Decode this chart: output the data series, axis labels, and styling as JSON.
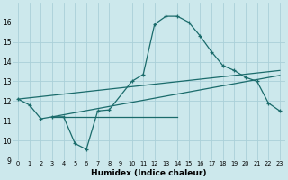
{
  "xlabel": "Humidex (Indice chaleur)",
  "bg_color": "#cce8ec",
  "grid_color": "#aad0d8",
  "line_color": "#1a6b6b",
  "xlim": [
    -0.5,
    23.5
  ],
  "ylim": [
    9,
    17
  ],
  "xticks": [
    0,
    1,
    2,
    3,
    4,
    5,
    6,
    7,
    8,
    9,
    10,
    11,
    12,
    13,
    14,
    15,
    16,
    17,
    18,
    19,
    20,
    21,
    22,
    23
  ],
  "yticks": [
    9,
    10,
    11,
    12,
    13,
    14,
    15,
    16
  ],
  "curve1_x": [
    0,
    1,
    2,
    3,
    4,
    5,
    6,
    7,
    8,
    10,
    11,
    12,
    13,
    14,
    15,
    16,
    17,
    18,
    19,
    20,
    21,
    22,
    23
  ],
  "curve1_y": [
    12.1,
    11.8,
    11.1,
    11.2,
    11.2,
    9.85,
    9.55,
    11.5,
    11.55,
    13.0,
    13.35,
    15.9,
    16.3,
    16.3,
    16.0,
    15.3,
    14.5,
    13.8,
    13.55,
    13.2,
    13.0,
    11.9,
    11.5
  ],
  "line1_x": [
    0,
    23
  ],
  "line1_y": [
    12.1,
    13.55
  ],
  "line2_x": [
    3,
    23
  ],
  "line2_y": [
    11.2,
    13.3
  ],
  "line3_x": [
    3,
    14
  ],
  "line3_y": [
    11.2,
    11.2
  ]
}
